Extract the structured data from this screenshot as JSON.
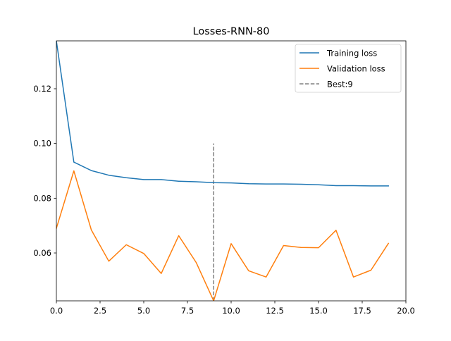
{
  "chart_data": {
    "type": "line",
    "title": "Losses-RNN-80",
    "xlabel": "",
    "ylabel": "",
    "xlim": [
      0,
      20
    ],
    "ylim": [
      0.0425,
      0.1375
    ],
    "xticks": [
      0,
      2.5,
      5,
      7.5,
      10,
      12.5,
      15,
      17.5,
      20
    ],
    "xtick_labels": [
      "0.0",
      "2.5",
      "5.0",
      "7.5",
      "10.0",
      "12.5",
      "15.0",
      "17.5",
      "20.0"
    ],
    "yticks": [
      0.06,
      0.08,
      0.1,
      0.12
    ],
    "ytick_labels": [
      "0.06",
      "0.08",
      "0.10",
      "0.12"
    ],
    "grid": false,
    "legend_position": "top-right",
    "x": [
      0,
      1,
      2,
      3,
      4,
      5,
      6,
      7,
      8,
      9,
      10,
      11,
      12,
      13,
      14,
      15,
      16,
      17,
      18,
      19
    ],
    "series": [
      {
        "name": "Training loss",
        "color": "#1f77b4",
        "style": "solid",
        "values": [
          0.1375,
          0.0932,
          0.0901,
          0.0884,
          0.0875,
          0.0868,
          0.0868,
          0.0862,
          0.086,
          0.0857,
          0.0856,
          0.0853,
          0.0852,
          0.0852,
          0.0851,
          0.0849,
          0.0846,
          0.0846,
          0.0845,
          0.0845
        ]
      },
      {
        "name": "Validation loss",
        "color": "#ff7f0e",
        "style": "solid",
        "values": [
          0.069,
          0.09,
          0.0684,
          0.057,
          0.063,
          0.0598,
          0.0525,
          0.0663,
          0.0565,
          0.0425,
          0.0634,
          0.0535,
          0.0512,
          0.0627,
          0.062,
          0.0619,
          0.0683,
          0.0512,
          0.0537,
          0.0635
        ]
      }
    ],
    "vline": {
      "name": "Best:9",
      "x": 9,
      "ymin": 0.0425,
      "ymax": 0.1,
      "color": "#808080",
      "style": "dashed"
    }
  }
}
